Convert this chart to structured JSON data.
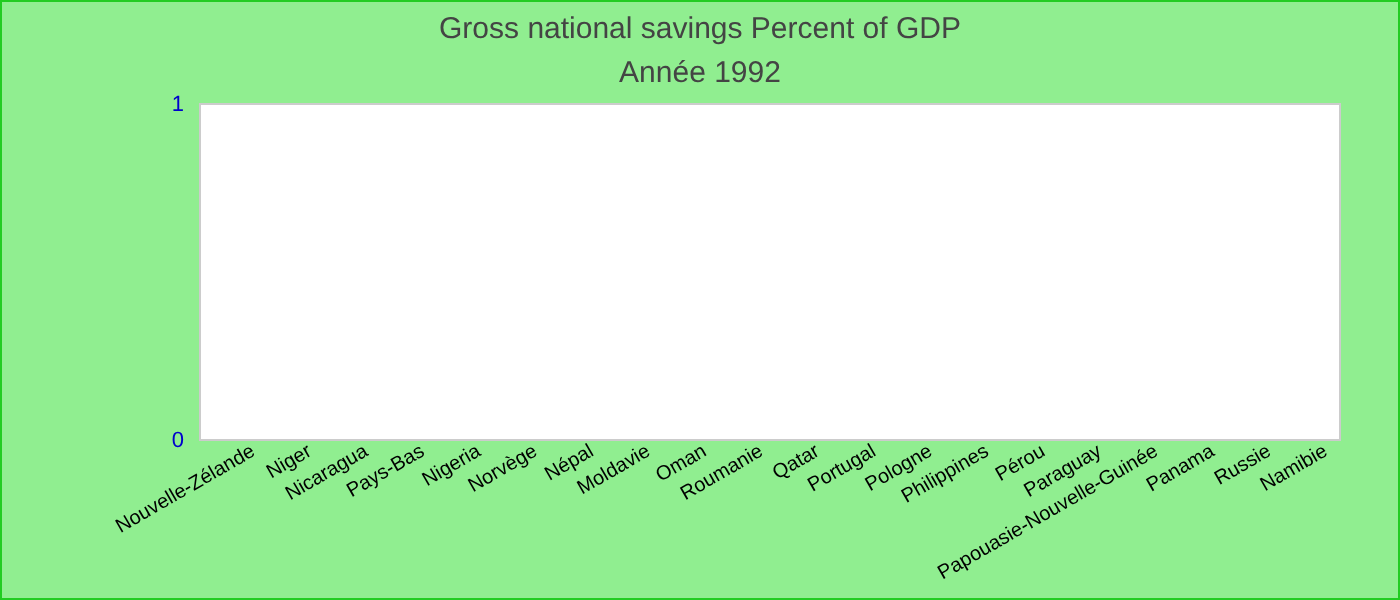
{
  "chart_data": {
    "type": "bar",
    "title": "Gross national savings  Percent of GDP",
    "subtitle": "Année 1992",
    "categories": [
      "Nouvelle-Zélande",
      "Niger",
      "Nicaragua",
      "Pays-Bas",
      "Nigeria",
      "Norvège",
      "Népal",
      "Moldavie",
      "Oman",
      "Roumanie",
      "Qatar",
      "Portugal",
      "Pologne",
      "Philippines",
      "Pérou",
      "Paraguay",
      "Papouasie-Nouvelle-Guinée",
      "Panama",
      "Russie",
      "Namibie"
    ],
    "values": [
      null,
      null,
      null,
      null,
      null,
      null,
      null,
      null,
      null,
      null,
      null,
      null,
      null,
      null,
      null,
      null,
      null,
      null,
      null,
      null
    ],
    "ylim": [
      0,
      1
    ],
    "yticks": [
      0,
      1
    ]
  }
}
